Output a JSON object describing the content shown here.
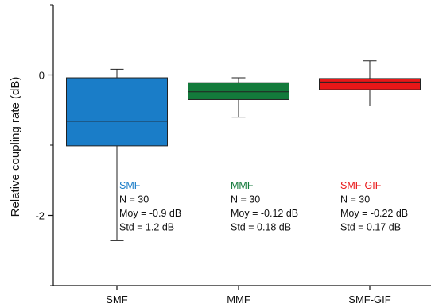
{
  "chart_data": {
    "type": "box",
    "title": "",
    "xlabel": "",
    "ylabel": "Relative coupling rate (dB)",
    "ylim": [
      -3.0,
      1.0
    ],
    "yticks": [
      0,
      -2
    ],
    "categories": [
      "SMF",
      "MMF",
      "SMF-GIF"
    ],
    "boxes": [
      {
        "category": "SMF",
        "whisker_max": 0.08,
        "q3": -0.04,
        "median": -0.66,
        "q1": -1.01,
        "whisker_min": -2.36,
        "color": "#1A7DC8"
      },
      {
        "category": "MMF",
        "whisker_max": -0.04,
        "q3": -0.11,
        "median": -0.24,
        "q1": -0.35,
        "whisker_min": -0.6,
        "color": "#137A3B"
      },
      {
        "category": "SMF-GIF",
        "whisker_max": 0.2,
        "q3": -0.05,
        "median": -0.1,
        "q1": -0.21,
        "whisker_min": -0.44,
        "color": "#E81718"
      }
    ],
    "annotations": [
      {
        "title": "SMF",
        "title_color": "#1A7DC8",
        "lines": [
          "N = 30",
          "Moy = -0.9 dB",
          "Std = 1.2 dB"
        ]
      },
      {
        "title": "MMF",
        "title_color": "#137A3B",
        "lines": [
          "N = 30",
          "Moy = -0.12 dB",
          "Std = 0.18 dB"
        ]
      },
      {
        "title": "SMF-GIF",
        "title_color": "#E81718",
        "lines": [
          "N = 30",
          "Moy = -0.22 dB",
          "Std = 0.17 dB"
        ]
      }
    ],
    "grid": false,
    "legend": "none"
  }
}
